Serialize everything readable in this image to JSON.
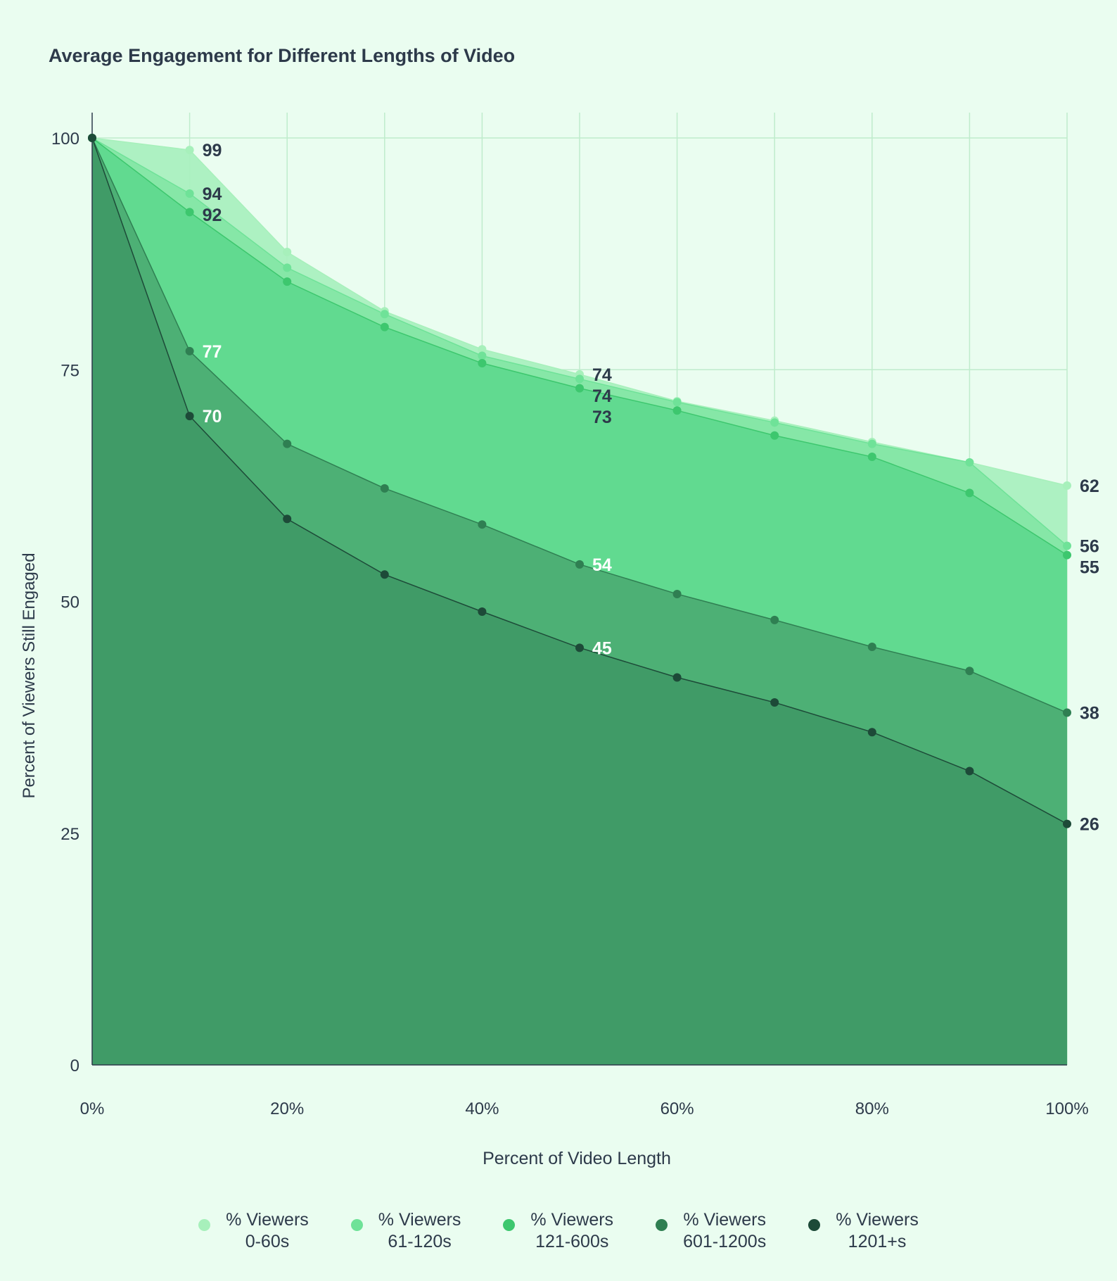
{
  "chart_data": {
    "type": "area",
    "title": "Average Engagement for Different Lengths of Video",
    "xlabel": "Percent of Video Length",
    "ylabel": "Percent of Viewers Still Engaged",
    "x": [
      0,
      10,
      20,
      30,
      40,
      50,
      60,
      70,
      80,
      90,
      100
    ],
    "xlim": [
      0,
      100
    ],
    "ylim": [
      0,
      100
    ],
    "x_ticks": [
      {
        "v": 0,
        "label": "0%"
      },
      {
        "v": 20,
        "label": "20%"
      },
      {
        "v": 40,
        "label": "40%"
      },
      {
        "v": 60,
        "label": "60%"
      },
      {
        "v": 80,
        "label": "80%"
      },
      {
        "v": 100,
        "label": "100%"
      }
    ],
    "y_ticks": [
      {
        "v": 0,
        "label": "0"
      },
      {
        "v": 25,
        "label": "25"
      },
      {
        "v": 50,
        "label": "50"
      },
      {
        "v": 75,
        "label": "75"
      },
      {
        "v": 100,
        "label": "100"
      }
    ],
    "legend_position": "bottom",
    "series": [
      {
        "name": "% Viewers 0-60s",
        "line1": "% Viewers",
        "line2": "0-60s",
        "color": "#a7f0bb",
        "fill": "#aaf0bf",
        "values": [
          100,
          98.7,
          87.7,
          81.3,
          77.2,
          74.5,
          71.6,
          69.5,
          67.2,
          65,
          62.5
        ],
        "labels": [
          {
            "i": 1,
            "text": "99",
            "color": "#2d3a4a"
          },
          {
            "i": 5,
            "text": "74",
            "color": "#2d3a4a"
          },
          {
            "i": 10,
            "text": "62",
            "color": "#2d3a4a"
          }
        ]
      },
      {
        "name": "% Viewers 61-120s",
        "line1": "% Viewers",
        "line2": "61-120s",
        "color": "#6fe298",
        "fill": "#84e6a5",
        "values": [
          100,
          94,
          86,
          81,
          76.5,
          74,
          71.5,
          69.3,
          67,
          65,
          56
        ],
        "labels": [
          {
            "i": 1,
            "text": "94",
            "color": "#2d3a4a"
          },
          {
            "i": 5,
            "text": "74",
            "color": "#2d3a4a"
          },
          {
            "i": 10,
            "text": "56",
            "color": "#2d3a4a"
          }
        ]
      },
      {
        "name": "% Viewers 121-600s",
        "line1": "% Viewers",
        "line2": "121-600s",
        "color": "#3dc76e",
        "fill": "#5fd98e",
        "values": [
          100,
          92,
          84.5,
          79.6,
          75.7,
          73,
          70.6,
          67.9,
          65.6,
          61.7,
          55
        ],
        "labels": [
          {
            "i": 1,
            "text": "92",
            "color": "#2d3a4a"
          },
          {
            "i": 5,
            "text": "73",
            "color": "#2d3a4a"
          },
          {
            "i": 10,
            "text": "55",
            "color": "#2d3a4a"
          }
        ]
      },
      {
        "name": "% Viewers 601-1200s",
        "line1": "% Viewers",
        "line2": "601-1200s",
        "color": "#2f7f52",
        "fill": "#4cae74",
        "values": [
          100,
          77,
          67,
          62.2,
          58.3,
          54,
          50.8,
          48,
          45.1,
          42.5,
          38
        ],
        "labels": [
          {
            "i": 1,
            "text": "77",
            "color": "#ffffff"
          },
          {
            "i": 5,
            "text": "54",
            "color": "#ffffff"
          },
          {
            "i": 10,
            "text": "38",
            "color": "#2d3a4a"
          }
        ]
      },
      {
        "name": "% Viewers 1201+s",
        "line1": "% Viewers",
        "line2": "1201+s",
        "color": "#1d4a38",
        "fill": "#3f9a66",
        "values": [
          100,
          70,
          58.9,
          52.9,
          48.9,
          45,
          41.8,
          39.1,
          35.9,
          31.7,
          26
        ],
        "labels": [
          {
            "i": 1,
            "text": "70",
            "color": "#ffffff"
          },
          {
            "i": 5,
            "text": "45",
            "color": "#ffffff"
          },
          {
            "i": 10,
            "text": "26",
            "color": "#2d3a4a"
          }
        ]
      }
    ]
  }
}
